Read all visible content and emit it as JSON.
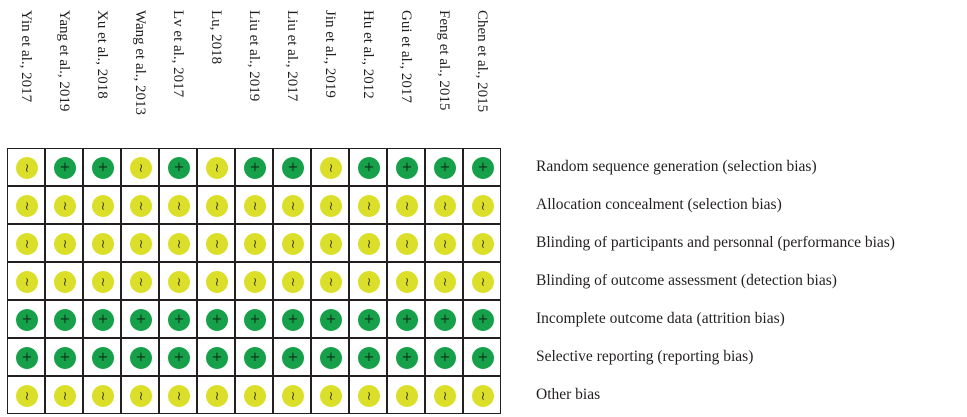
{
  "studies": [
    "Yin et al., 2017",
    "Yang et al., 2019",
    "Xu et al., 2018",
    "Wang et al., 2013",
    "Lv et al., 2017",
    "Lu, 2018",
    "Liu et al., 2019",
    "Liu et al., 2017",
    "Jin et al., 2019",
    "Hu et al., 2012",
    "Gui et al., 2017",
    "Feng et al., 2015",
    "Chen et al., 2015"
  ],
  "domains": [
    "Random sequence generation (selection bias)",
    "Allocation concealment (selection bias)",
    "Blinding of participants and personnal (performance bias)",
    "Blinding of outcome assessment (detection bias)",
    "Incomplete outcome data (attrition bias)",
    "Selective reporting (reporting bias)",
    "Other bias"
  ],
  "judgements": [
    [
      "?",
      "+",
      "+",
      "?",
      "+",
      "?",
      "+",
      "+",
      "?",
      "+",
      "+",
      "+",
      "+"
    ],
    [
      "?",
      "?",
      "?",
      "?",
      "?",
      "?",
      "?",
      "?",
      "?",
      "?",
      "?",
      "?",
      "?"
    ],
    [
      "?",
      "?",
      "?",
      "?",
      "?",
      "?",
      "?",
      "?",
      "?",
      "?",
      "?",
      "?",
      "?"
    ],
    [
      "?",
      "?",
      "?",
      "?",
      "?",
      "?",
      "?",
      "?",
      "?",
      "?",
      "?",
      "?",
      "?"
    ],
    [
      "+",
      "+",
      "+",
      "+",
      "+",
      "+",
      "+",
      "+",
      "+",
      "+",
      "+",
      "+",
      "+"
    ],
    [
      "+",
      "+",
      "+",
      "+",
      "+",
      "+",
      "+",
      "+",
      "+",
      "+",
      "+",
      "+",
      "+"
    ],
    [
      "?",
      "?",
      "?",
      "?",
      "?",
      "?",
      "?",
      "?",
      "?",
      "?",
      "?",
      "?",
      "?"
    ]
  ],
  "symbol_glyphs": {
    "+": "+",
    "?": "~"
  },
  "legend_colors": {
    "low_risk": "#16a04a",
    "unclear_risk": "#dbdf2a"
  }
}
